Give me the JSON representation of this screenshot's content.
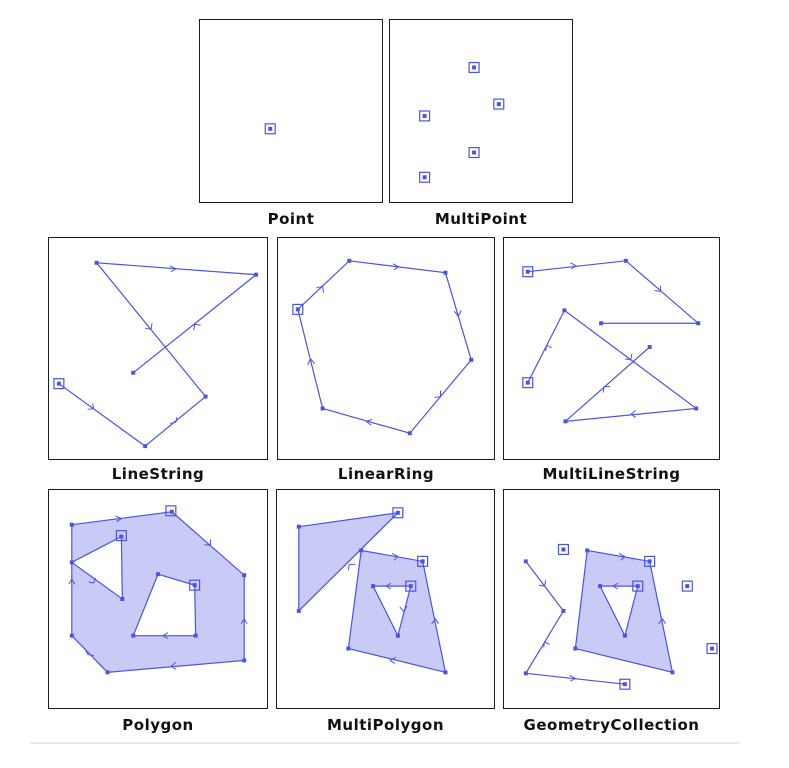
{
  "colors": {
    "stroke": "#4a52e8",
    "fill": "#c9cbf6",
    "border": "#1a1a2a"
  },
  "panels": [
    {
      "id": "point",
      "label": "Point"
    },
    {
      "id": "multipoint",
      "label": "MultiPoint"
    },
    {
      "id": "linestring",
      "label": "LineString"
    },
    {
      "id": "linearring",
      "label": "LinearRing"
    },
    {
      "id": "multilinestring",
      "label": "MultiLineString"
    },
    {
      "id": "polygon",
      "label": "Polygon"
    },
    {
      "id": "multipolygon",
      "label": "MultiPolygon"
    },
    {
      "id": "geometrycollection",
      "label": "GeometryCollection"
    }
  ]
}
